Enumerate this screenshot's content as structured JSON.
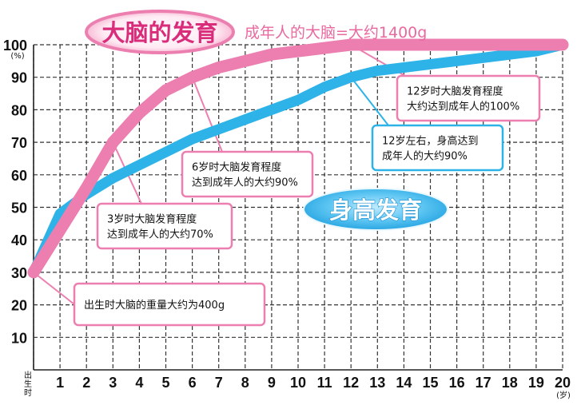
{
  "chart_data": {
    "type": "line",
    "x_ticks": [
      "出生时",
      "1",
      "2",
      "3",
      "4",
      "5",
      "6",
      "7",
      "8",
      "9",
      "10",
      "11",
      "12",
      "13",
      "14",
      "15",
      "16",
      "17",
      "18",
      "19",
      "20"
    ],
    "y_ticks": [
      "10",
      "20",
      "30",
      "40",
      "50",
      "60",
      "70",
      "80",
      "90",
      "100"
    ],
    "xlim": [
      0,
      20
    ],
    "ylim": [
      0,
      100
    ],
    "x_unit": "(岁)",
    "y_unit": "(%)",
    "grid": true,
    "title": "大脑的发育",
    "subtitle": "成年人的大脑=大约1400g",
    "series": [
      {
        "name": "大脑的发育",
        "color": "#ec7fb0",
        "x": [
          0,
          1,
          2,
          3,
          4,
          5,
          6,
          7,
          8,
          9,
          10,
          11,
          12,
          13,
          14,
          15,
          16,
          17,
          18,
          19,
          20
        ],
        "y": [
          30,
          43,
          56,
          70,
          79,
          86,
          90,
          93,
          95,
          97,
          98,
          99,
          100,
          100,
          100,
          100,
          100,
          100,
          100,
          100,
          100
        ]
      },
      {
        "name": "身高发育",
        "color": "#2db3e8",
        "x": [
          0,
          1,
          2,
          3,
          4,
          5,
          6,
          7,
          8,
          9,
          10,
          11,
          12,
          13,
          14,
          15,
          16,
          17,
          18,
          19,
          20
        ],
        "y": [
          30,
          48,
          54,
          59,
          63,
          67,
          71,
          74,
          77,
          80,
          83,
          87,
          90,
          92,
          93,
          94,
          95,
          96,
          97,
          98,
          100
        ]
      }
    ],
    "annotations": [
      {
        "text": "出生时大脑的重量大约为400g",
        "x": 0,
        "y": 30,
        "series": 0
      },
      {
        "text": [
          "3岁时大脑发育程度",
          "达到成年人的大约70%"
        ],
        "x": 3,
        "y": 70,
        "series": 0
      },
      {
        "text": [
          "6岁时大脑发育程度",
          "达到成年人的大约90%"
        ],
        "x": 6,
        "y": 90,
        "series": 0
      },
      {
        "text": [
          "12岁时大脑发育程度",
          "大约达到成年人的100%"
        ],
        "x": 12,
        "y": 100,
        "series": 0
      },
      {
        "text": [
          "12岁左右，身高达到",
          "成年人的大约90%"
        ],
        "x": 12,
        "y": 90,
        "series": 1
      }
    ]
  }
}
